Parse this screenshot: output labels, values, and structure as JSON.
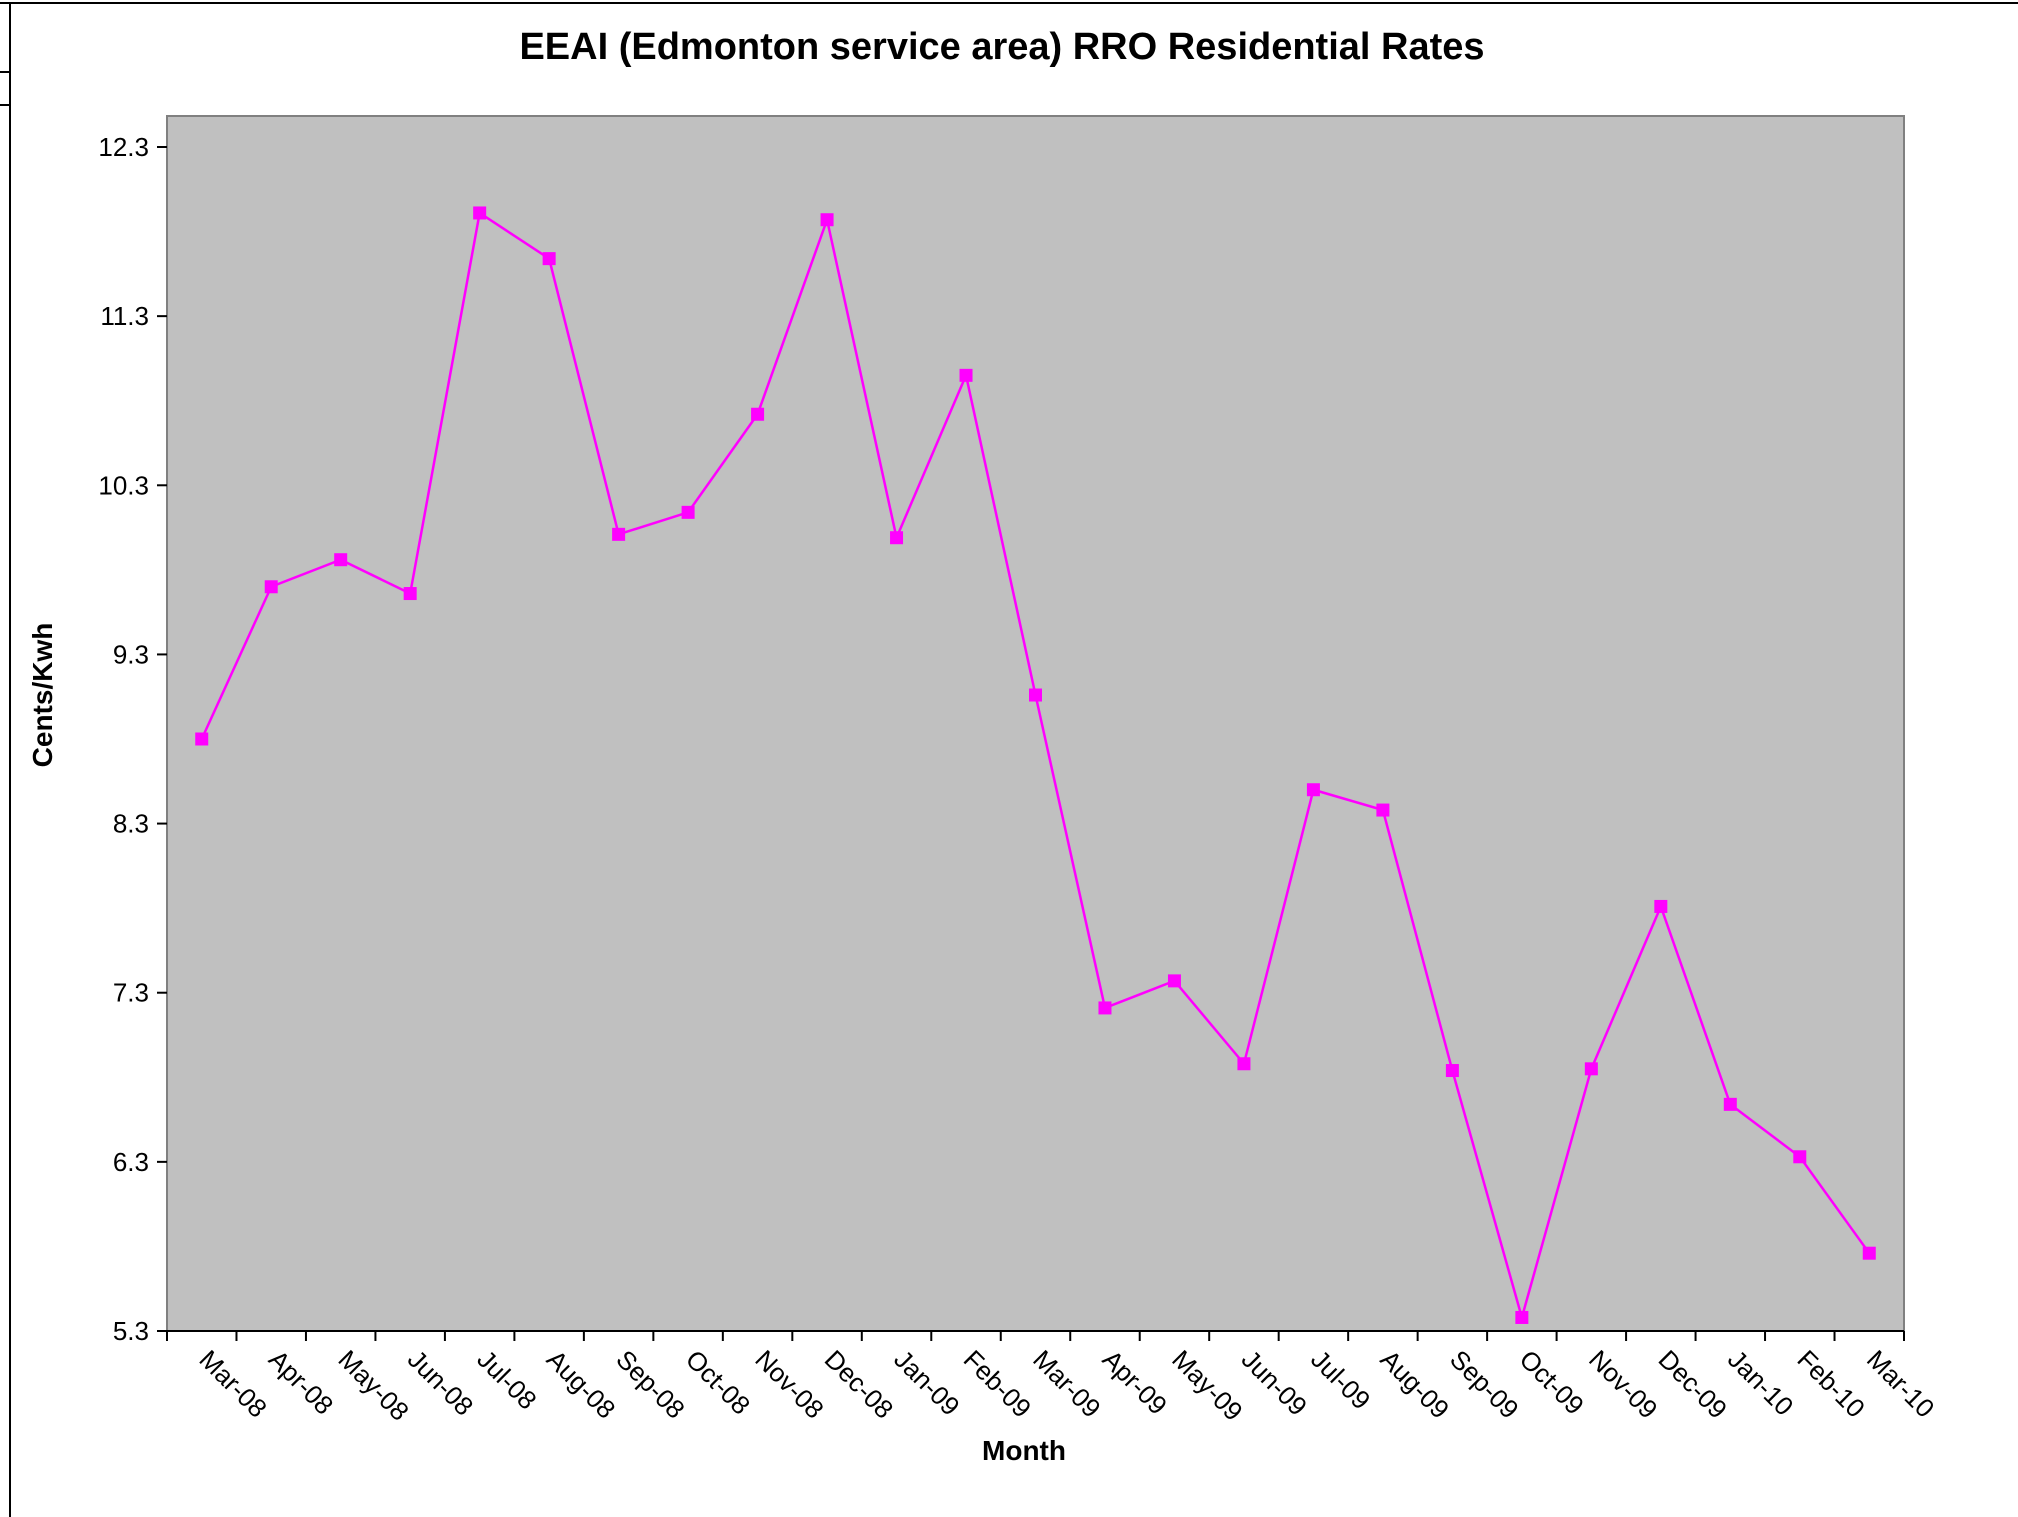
{
  "chart_data": {
    "type": "line",
    "title": "EEAI (Edmonton service area) RRO Residential Rates",
    "xlabel": "Month",
    "ylabel": "Cents/Kwh",
    "ylim": [
      5.3,
      12.3
    ],
    "yticks": [
      "12.3",
      "11.3",
      "10.3",
      "9.3",
      "8.3",
      "7.3",
      "6.3",
      "5.3"
    ],
    "grid": false,
    "legend": "none",
    "categories": [
      "Mar-08",
      "Apr-08",
      "May-08",
      "Jun-08",
      "Jul-08",
      "Aug-08",
      "Sep-08",
      "Oct-08",
      "Nov-08",
      "Dec-08",
      "Jan-09",
      "Feb-09",
      "Mar-09",
      "Apr-09",
      "May-09",
      "Jun-09",
      "Jul-09",
      "Aug-09",
      "Sep-09",
      "Oct-09",
      "Nov-09",
      "Dec-09",
      "Jan-10",
      "Feb-10",
      "Mar-10"
    ],
    "series": [
      {
        "values": [
          8.8,
          9.7,
          9.86,
          9.66,
          11.91,
          11.64,
          10.01,
          10.14,
          10.72,
          11.87,
          9.99,
          10.95,
          9.06,
          7.21,
          7.37,
          6.88,
          8.5,
          8.38,
          6.84,
          5.38,
          6.85,
          7.81,
          6.64,
          6.33,
          5.76
        ],
        "color": "#FF00FF"
      }
    ],
    "colors": {
      "plot_background": "#C0C0C0",
      "line": "#FF00FF",
      "marker": "#FF00FF"
    }
  }
}
